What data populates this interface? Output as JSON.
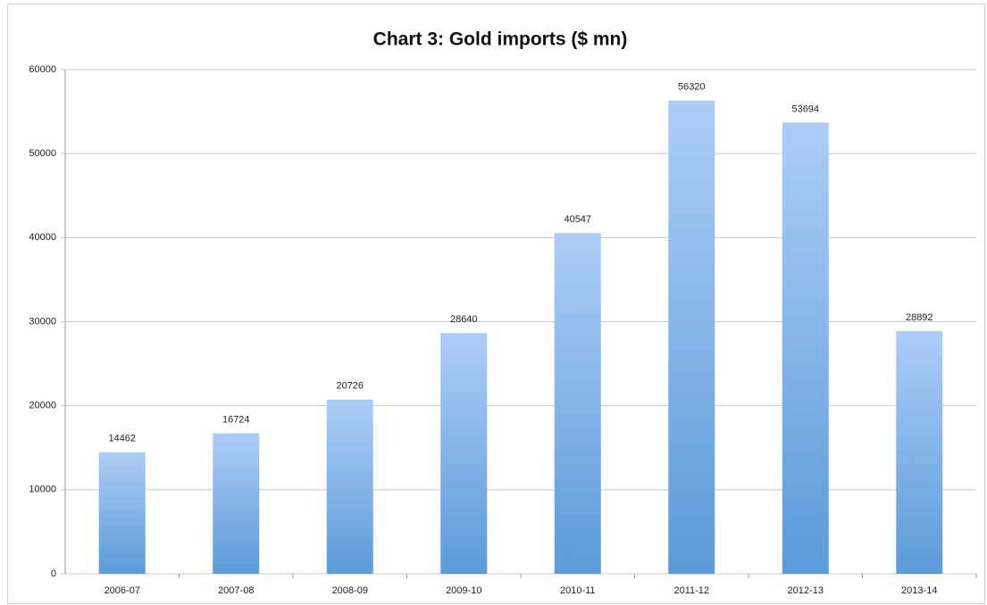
{
  "chart_data": {
    "type": "bar",
    "title": "Chart 3: Gold imports ($ mn)",
    "categories": [
      "2006-07",
      "2007-08",
      "2008-09",
      "2009-10",
      "2010-11",
      "2011-12",
      "2012-13",
      "2013-14"
    ],
    "values": [
      14462,
      16724,
      20726,
      28640,
      40547,
      56320,
      53694,
      28892
    ],
    "color": "#5b9bd9",
    "ylim": [
      0,
      60000
    ],
    "yticks": [
      0,
      10000,
      20000,
      30000,
      40000,
      50000,
      60000
    ],
    "grid": true
  }
}
